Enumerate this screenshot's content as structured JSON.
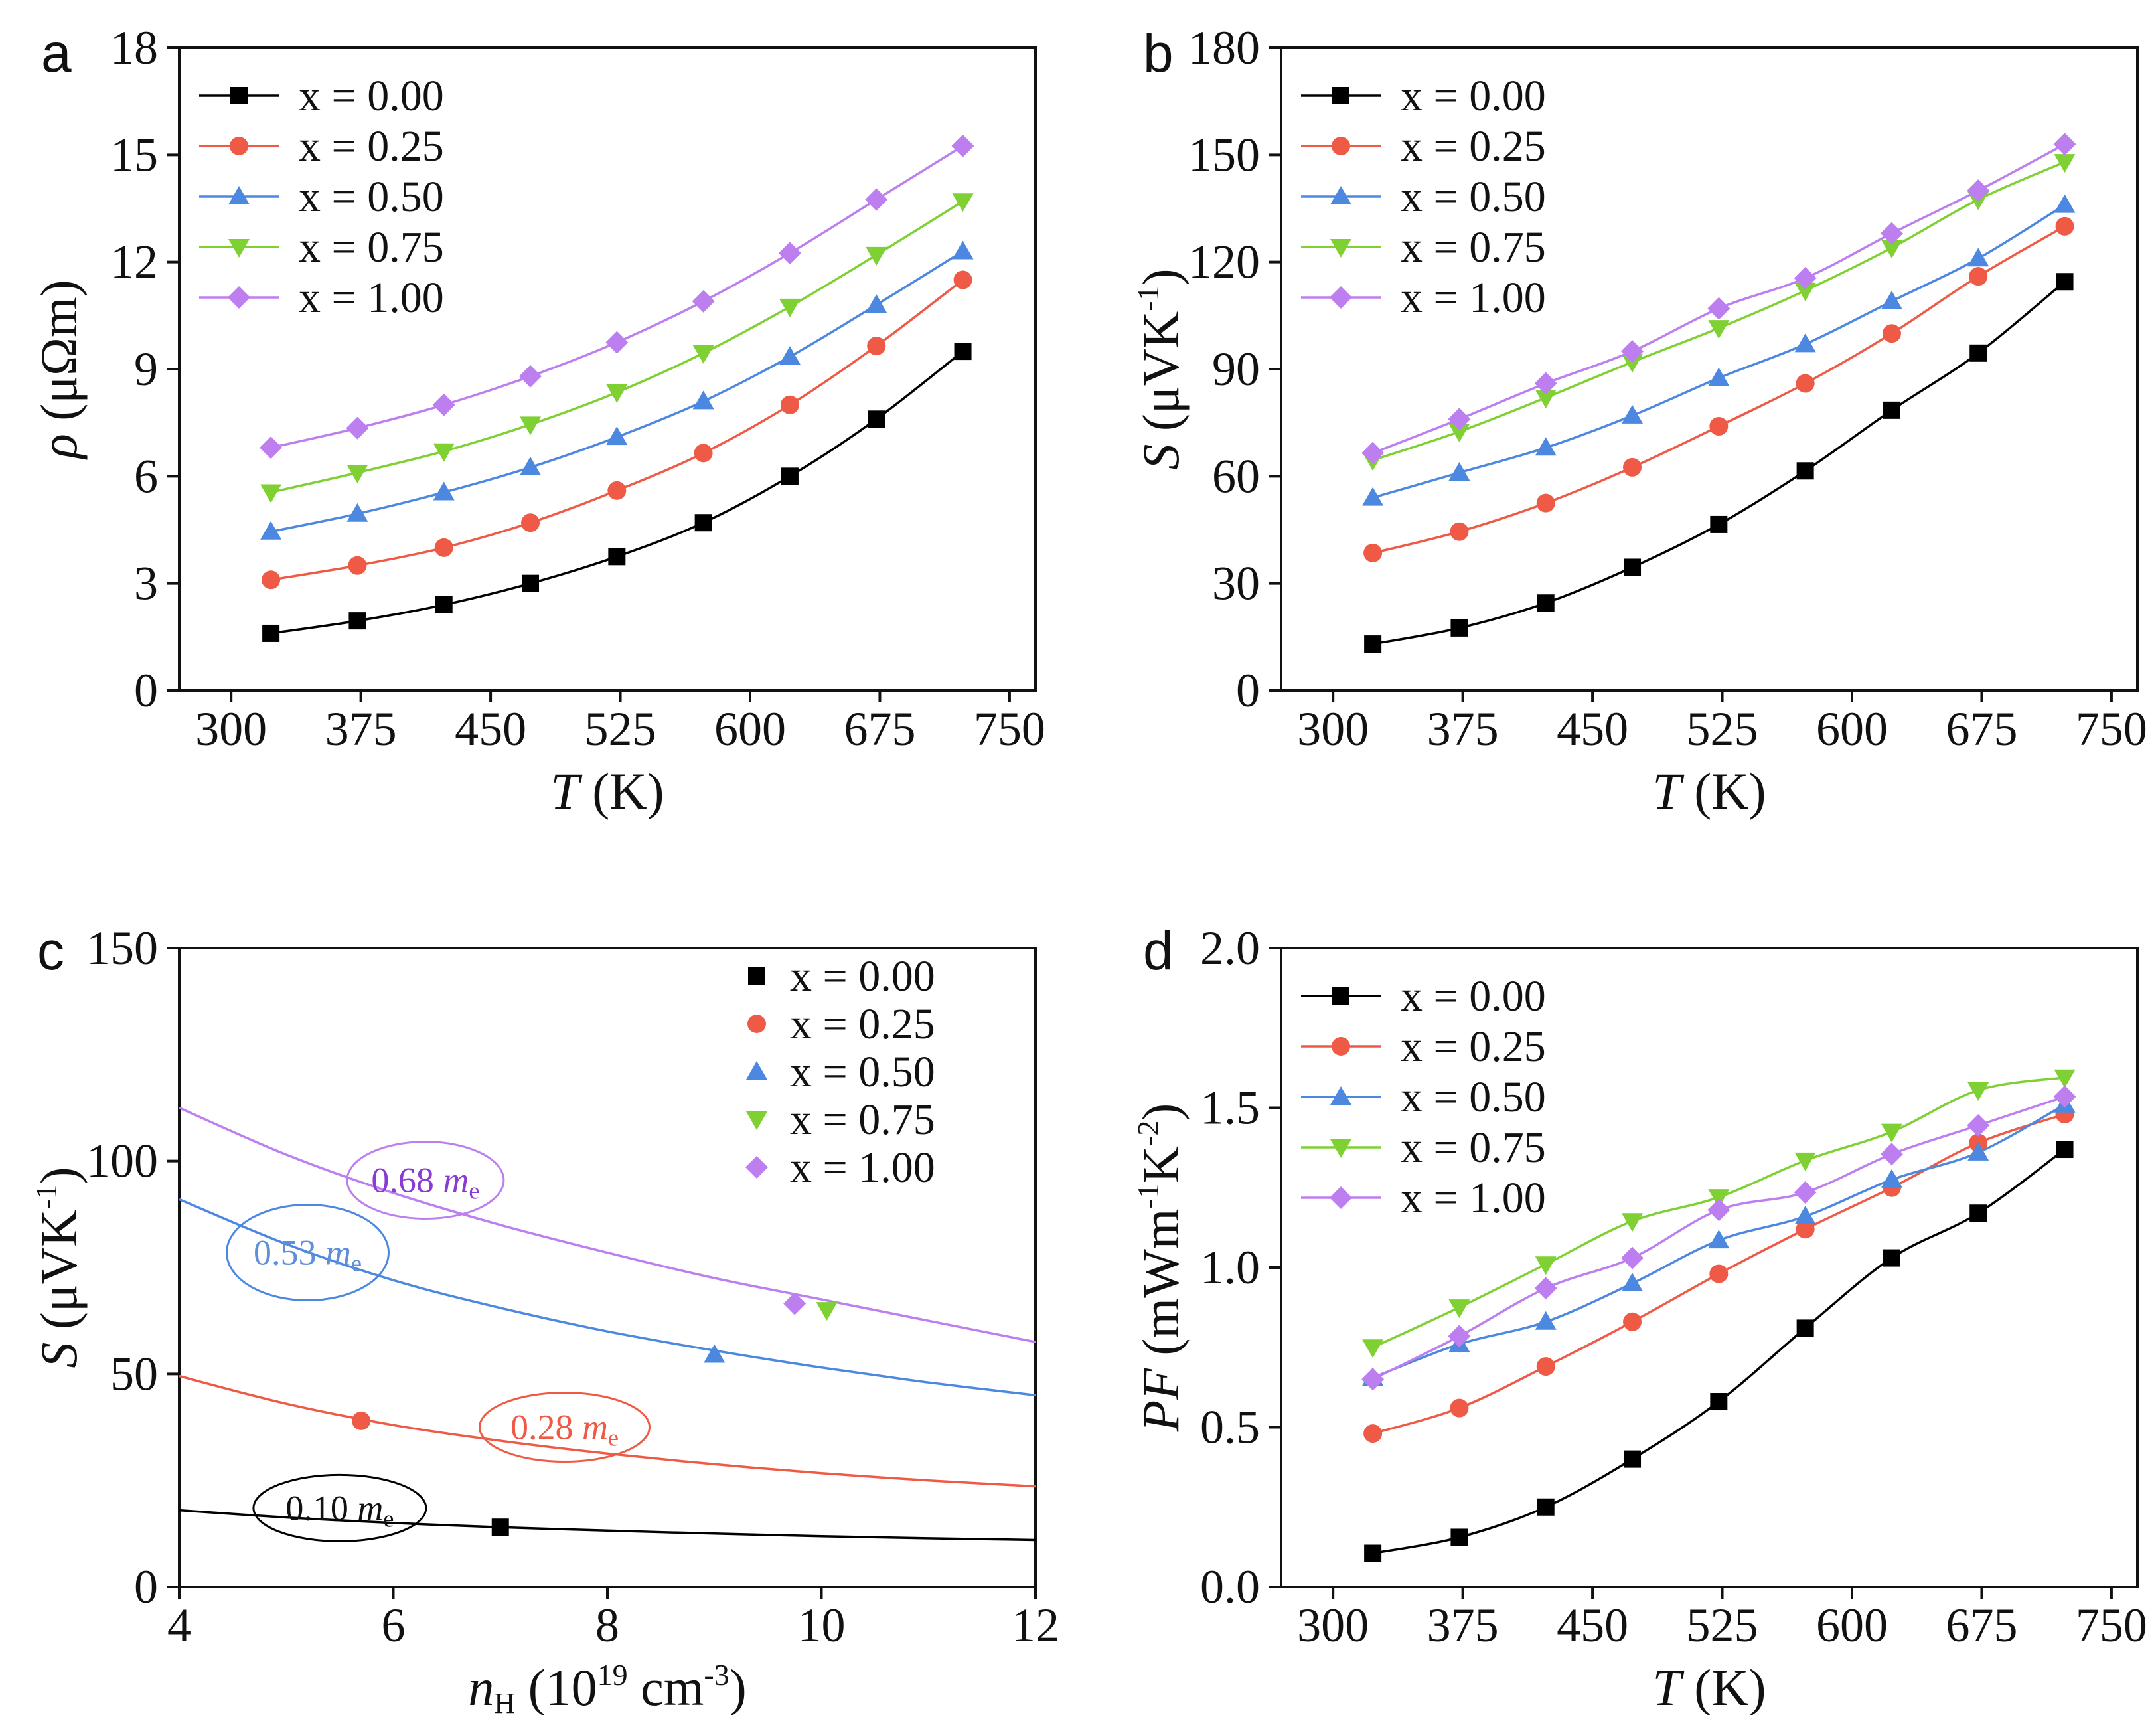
{
  "colors": {
    "x000": "#000000",
    "x025": "#ee5a45",
    "x050": "#4d88e0",
    "x075": "#7fd032",
    "x100": "#bd7ff0",
    "annot_x050": "#5e8fd8",
    "annot_x100": "#8a3bd1"
  },
  "chart_data": [
    {
      "panel": "a",
      "type": "line",
      "xlabel_italic": "T",
      "xlabel_rest": " (K)",
      "ylabel_italic": "ρ",
      "ylabel_rest": " (μΩm)",
      "xlim": [
        270,
        765
      ],
      "ylim": [
        0,
        18
      ],
      "xticks": [
        "300",
        "375",
        "450",
        "525",
        "600",
        "675",
        "750"
      ],
      "yticks": [
        "0",
        "3",
        "6",
        "9",
        "12",
        "15",
        "18"
      ],
      "x": [
        323,
        373,
        423,
        473,
        523,
        573,
        623,
        673,
        723
      ],
      "legend_position": "top-left",
      "series": [
        {
          "name": "x = 0.00",
          "marker": "square",
          "values": [
            1.6,
            1.95,
            2.4,
            3.0,
            3.75,
            4.7,
            6.0,
            7.6,
            9.5
          ]
        },
        {
          "name": "x = 0.25",
          "marker": "circle",
          "values": [
            3.1,
            3.5,
            4.0,
            4.7,
            5.6,
            6.65,
            8.0,
            9.65,
            11.5
          ]
        },
        {
          "name": "x = 0.50",
          "marker": "triangle-up",
          "values": [
            4.45,
            4.95,
            5.55,
            6.25,
            7.1,
            8.1,
            9.35,
            10.8,
            12.3
          ]
        },
        {
          "name": "x = 0.75",
          "marker": "triangle-down",
          "values": [
            5.55,
            6.1,
            6.7,
            7.45,
            8.35,
            9.45,
            10.75,
            12.2,
            13.7
          ]
        },
        {
          "name": "x = 1.00",
          "marker": "diamond",
          "values": [
            6.8,
            7.35,
            8.0,
            8.8,
            9.75,
            10.9,
            12.25,
            13.75,
            15.25
          ]
        }
      ]
    },
    {
      "panel": "b",
      "type": "line",
      "xlabel_italic": "T",
      "xlabel_rest": " (K)",
      "ylabel_italic": "S",
      "ylabel_rest": " (μVK",
      "ylabel_sup": "-1",
      "ylabel_close": ")",
      "xlim": [
        270,
        765
      ],
      "ylim": [
        0,
        180
      ],
      "xticks": [
        "300",
        "375",
        "450",
        "525",
        "600",
        "675",
        "750"
      ],
      "yticks": [
        "0",
        "30",
        "60",
        "90",
        "120",
        "150",
        "180"
      ],
      "x": [
        323,
        373,
        423,
        473,
        523,
        573,
        623,
        673,
        723
      ],
      "legend_position": "top-left",
      "series": [
        {
          "name": "x = 0.00",
          "marker": "square",
          "values": [
            13,
            17.5,
            24.5,
            34.5,
            46.5,
            61.5,
            78.5,
            94.5,
            114.5
          ]
        },
        {
          "name": "x = 0.25",
          "marker": "circle",
          "values": [
            38.5,
            44.5,
            52.5,
            62.5,
            74,
            86,
            100,
            116,
            130
          ]
        },
        {
          "name": "x = 0.50",
          "marker": "triangle-up",
          "values": [
            54,
            61,
            68,
            77,
            87.5,
            97,
            109,
            121,
            136
          ]
        },
        {
          "name": "x = 0.75",
          "marker": "triangle-down",
          "values": [
            64.5,
            72.5,
            82,
            92,
            101.5,
            112,
            124,
            137.5,
            148
          ]
        },
        {
          "name": "x = 1.00",
          "marker": "diamond",
          "values": [
            66.5,
            76,
            86,
            95,
            107,
            115.5,
            128,
            140,
            153
          ]
        }
      ]
    },
    {
      "panel": "c",
      "type": "scatter",
      "xlabel_italic": "n",
      "xlabel_sub": "H",
      "xlabel_rest": " (10",
      "xlabel_sup": "19",
      "xlabel_rest2": " cm",
      "xlabel_sup2": "-3",
      "xlabel_close": ")",
      "ylabel_italic": "S",
      "ylabel_rest": " (μVK",
      "ylabel_sup": "-1",
      "ylabel_close": ")",
      "xlim": [
        4,
        12
      ],
      "ylim": [
        0,
        150
      ],
      "xticks": [
        "4",
        "6",
        "8",
        "10",
        "12"
      ],
      "yticks": [
        "0",
        "50",
        "100",
        "150"
      ],
      "legend_position": "top-right",
      "points": [
        {
          "name": "x = 0.00",
          "marker": "square",
          "x": 7.0,
          "y": 14
        },
        {
          "name": "x = 0.25",
          "marker": "circle",
          "x": 5.7,
          "y": 39
        },
        {
          "name": "x = 0.50",
          "marker": "triangle-up",
          "x": 9.0,
          "y": 54.5
        },
        {
          "name": "x = 0.75",
          "marker": "triangle-down",
          "x": 10.05,
          "y": 65
        },
        {
          "name": "x = 1.00",
          "marker": "diamond",
          "x": 9.75,
          "y": 66.5
        }
      ],
      "pisarenko_curves": [
        {
          "label_value": "0.10",
          "label_unit_italic": "m",
          "label_unit_sub": "e",
          "series_color": "x000",
          "x": [
            4,
            5,
            6,
            7,
            8,
            9,
            10,
            11,
            12
          ],
          "y": [
            18,
            16.3,
            15,
            14,
            13.2,
            12.5,
            11.9,
            11.4,
            11
          ]
        },
        {
          "label_value": "0.28",
          "label_unit_italic": "m",
          "label_unit_sub": "e",
          "series_color": "x025",
          "x": [
            4,
            5,
            6,
            7,
            8,
            9,
            10,
            11,
            12
          ],
          "y": [
            49.5,
            43,
            38,
            34.3,
            31.3,
            28.8,
            26.7,
            25,
            23.6
          ]
        },
        {
          "label_value": "0.53",
          "label_unit_italic": "m",
          "label_unit_sub": "e",
          "series_color": "x050",
          "x": [
            4,
            5,
            6,
            7,
            8,
            9,
            10,
            11,
            12
          ],
          "y": [
            91,
            80.5,
            72,
            65.5,
            60,
            55.5,
            51.5,
            48,
            45
          ]
        },
        {
          "label_value": "0.68",
          "label_unit_italic": "m",
          "label_unit_sub": "e",
          "series_color": "x100",
          "x": [
            4,
            5,
            6,
            7,
            8,
            9,
            10,
            11,
            12
          ],
          "y": [
            112.5,
            101.5,
            92.5,
            85,
            78.5,
            72.5,
            67.5,
            62.5,
            57.5
          ]
        }
      ]
    },
    {
      "panel": "d",
      "type": "line",
      "xlabel_italic": "T",
      "xlabel_rest": " (K)",
      "ylabel_italic": "PF",
      "ylabel_rest": " (mWm",
      "ylabel_sup": "-1",
      "ylabel_rest2": "K",
      "ylabel_sup2": "-2",
      "ylabel_close": ")",
      "xlim": [
        270,
        765
      ],
      "ylim": [
        0,
        2.0
      ],
      "xticks": [
        "300",
        "375",
        "450",
        "525",
        "600",
        "675",
        "750"
      ],
      "yticks": [
        "0.0",
        "0.5",
        "1.0",
        "1.5",
        "2.0"
      ],
      "x": [
        323,
        373,
        423,
        473,
        523,
        573,
        623,
        673,
        723
      ],
      "legend_position": "top-left",
      "series": [
        {
          "name": "x = 0.00",
          "marker": "square",
          "values": [
            0.105,
            0.155,
            0.25,
            0.4,
            0.58,
            0.81,
            1.03,
            1.17,
            1.37
          ]
        },
        {
          "name": "x = 0.25",
          "marker": "circle",
          "values": [
            0.48,
            0.56,
            0.69,
            0.83,
            0.98,
            1.12,
            1.25,
            1.39,
            1.48
          ]
        },
        {
          "name": "x = 0.50",
          "marker": "triangle-up",
          "values": [
            0.655,
            0.76,
            0.83,
            0.95,
            1.085,
            1.16,
            1.275,
            1.36,
            1.51
          ]
        },
        {
          "name": "x = 0.75",
          "marker": "triangle-down",
          "values": [
            0.75,
            0.875,
            1.01,
            1.145,
            1.22,
            1.335,
            1.425,
            1.555,
            1.595
          ]
        },
        {
          "name": "x = 1.00",
          "marker": "diamond",
          "values": [
            0.65,
            0.785,
            0.935,
            1.03,
            1.18,
            1.235,
            1.355,
            1.445,
            1.535
          ]
        }
      ]
    }
  ]
}
